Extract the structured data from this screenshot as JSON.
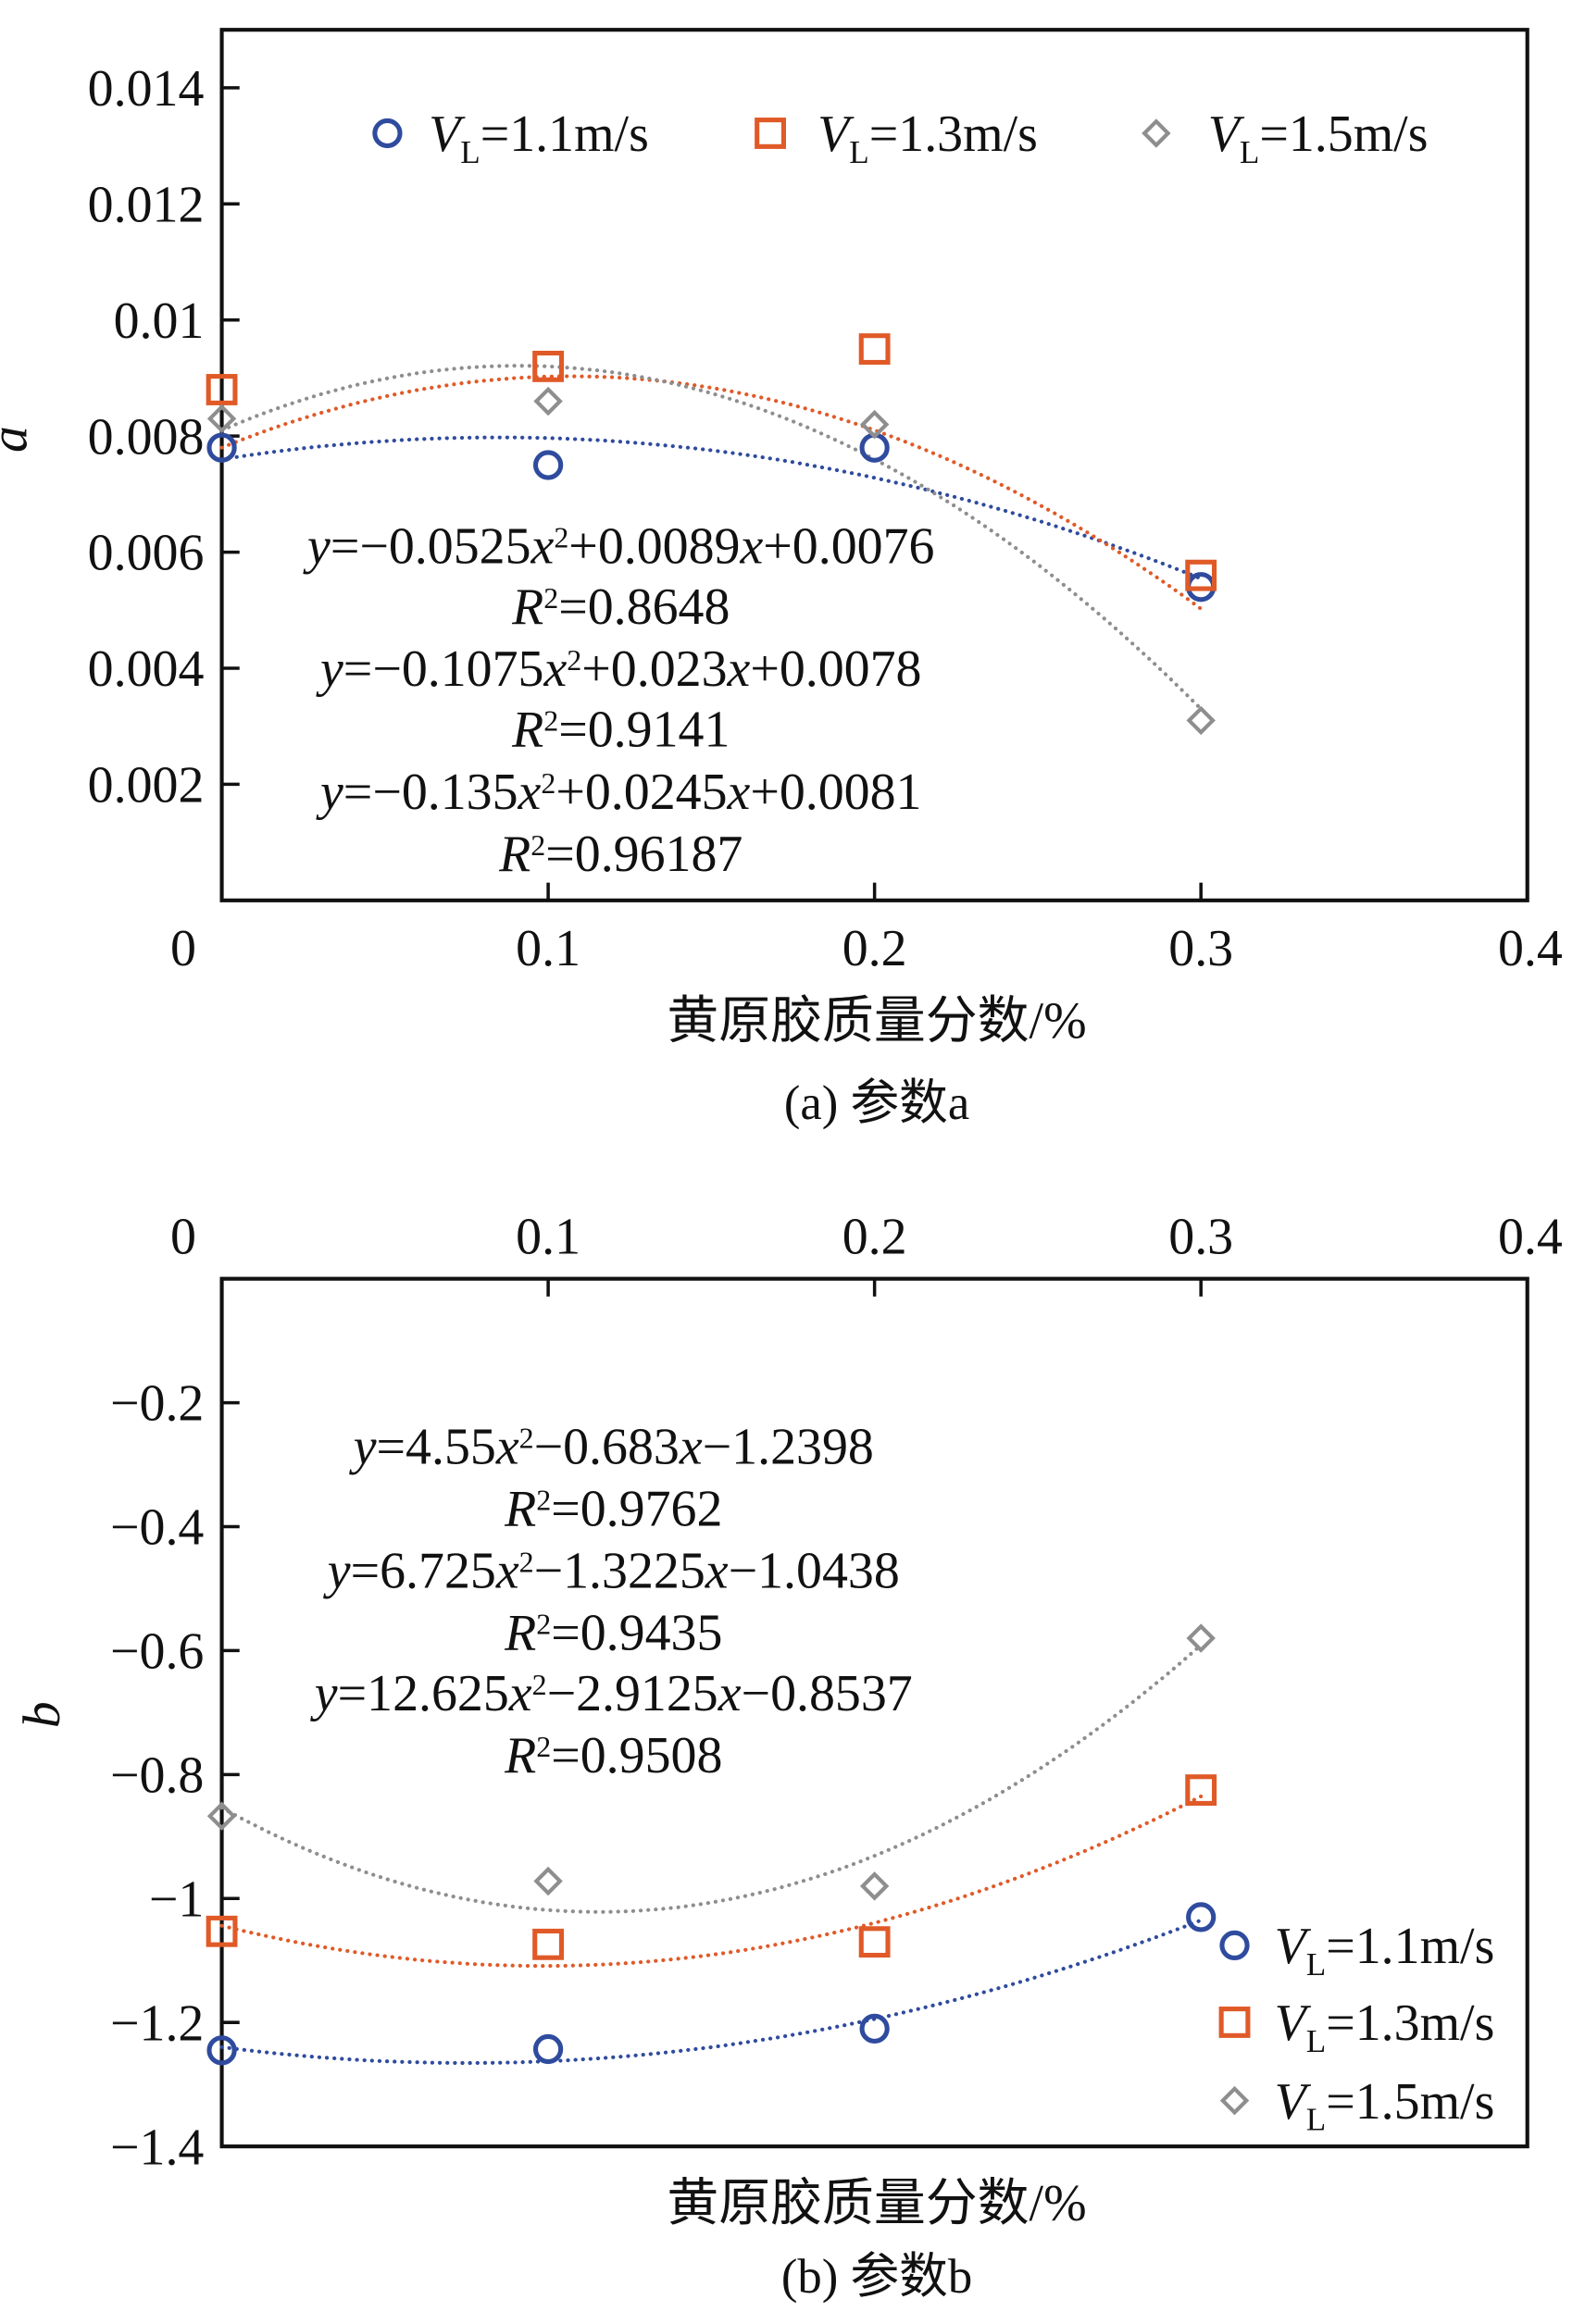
{
  "colors": {
    "s1": "#2f4b9e",
    "s2": "#e05a28",
    "s3": "#8e8e8e",
    "axis": "#111111"
  },
  "chart_data": [
    {
      "type": "scatter",
      "panel": "a",
      "caption": "(a) 参数a",
      "xlabel": "黄原胶质量分数/%",
      "ylabel": "a",
      "xlim": [
        0,
        0.4
      ],
      "ylim": [
        0,
        0.015
      ],
      "x_axis_position": "bottom",
      "x_ticks": [
        0,
        0.1,
        0.2,
        0.3,
        0.4
      ],
      "x_tick_labels": [
        "0",
        "0.1",
        "0.2",
        "0.3",
        "0.4"
      ],
      "y_ticks": [
        0.002,
        0.004,
        0.006,
        0.008,
        0.01,
        0.012,
        0.014
      ],
      "y_tick_labels": [
        "0.002",
        "0.004",
        "0.006",
        "0.008",
        "0.01",
        "0.012",
        "0.014"
      ],
      "legend_position": "top",
      "x": [
        0,
        0.1,
        0.2,
        0.3
      ],
      "series": [
        {
          "name": "VL=1.1m/s",
          "marker": "circle",
          "values": [
            0.0078,
            0.0075,
            0.0078,
            0.0054
          ],
          "fit": [
            -0.0525,
            0.0089,
            0.0076
          ]
        },
        {
          "name": "VL=1.3m/s",
          "marker": "square",
          "values": [
            0.0088,
            0.0092,
            0.0095,
            0.0056
          ],
          "fit": [
            -0.1075,
            0.023,
            0.0078
          ]
        },
        {
          "name": "VL=1.5m/s",
          "marker": "diamond",
          "values": [
            0.0083,
            0.0086,
            0.0082,
            0.0031
          ],
          "fit": [
            -0.135,
            0.0245,
            0.0081
          ]
        }
      ],
      "annotations": [
        "y=−0.0525x²+0.0089x+0.0076",
        "R²=0.8648",
        "y=−0.1075x²+0.023x+0.0078",
        "R²=0.9141",
        "y=−0.135x²+0.0245x+0.0081",
        "R²=0.96187"
      ]
    },
    {
      "type": "scatter",
      "panel": "b",
      "caption": "(b) 参数b",
      "xlabel": "黄原胶质量分数/%",
      "ylabel": "b",
      "xlim": [
        0,
        0.4
      ],
      "ylim": [
        -1.4,
        0
      ],
      "x_axis_position": "top",
      "x_ticks": [
        0,
        0.1,
        0.2,
        0.3,
        0.4
      ],
      "x_tick_labels": [
        "0",
        "0.1",
        "0.2",
        "0.3",
        "0.4"
      ],
      "y_ticks": [
        -0.2,
        -0.4,
        -0.6,
        -0.8,
        -1,
        -1.2,
        -1.4
      ],
      "y_tick_labels": [
        "−0.2",
        "−0.4",
        "−0.6",
        "−0.8",
        "−1",
        "−1.2",
        "−1.4"
      ],
      "legend_position": "bottom-right",
      "x": [
        0,
        0.1,
        0.2,
        0.3
      ],
      "series": [
        {
          "name": "VL=1.1m/s",
          "marker": "circle",
          "values": [
            -1.245,
            -1.243,
            -1.21,
            -1.03
          ],
          "fit": [
            4.55,
            -0.683,
            -1.2398
          ]
        },
        {
          "name": "VL=1.3m/s",
          "marker": "square",
          "values": [
            -1.053,
            -1.074,
            -1.07,
            -0.825
          ],
          "fit": [
            6.725,
            -1.3225,
            -1.0438
          ]
        },
        {
          "name": "VL=1.5m/s",
          "marker": "diamond",
          "values": [
            -0.867,
            -0.972,
            -0.98,
            -0.58
          ],
          "fit": [
            12.625,
            -2.9125,
            -0.8537
          ]
        }
      ],
      "annotations": [
        "y=4.55x²−0.683x−1.2398",
        "R²=0.9762",
        "y=6.725x²−1.3225x−1.0438",
        "R²=0.9435",
        "y=12.625x²−2.9125x−0.8537",
        "R²=0.9508"
      ]
    }
  ]
}
